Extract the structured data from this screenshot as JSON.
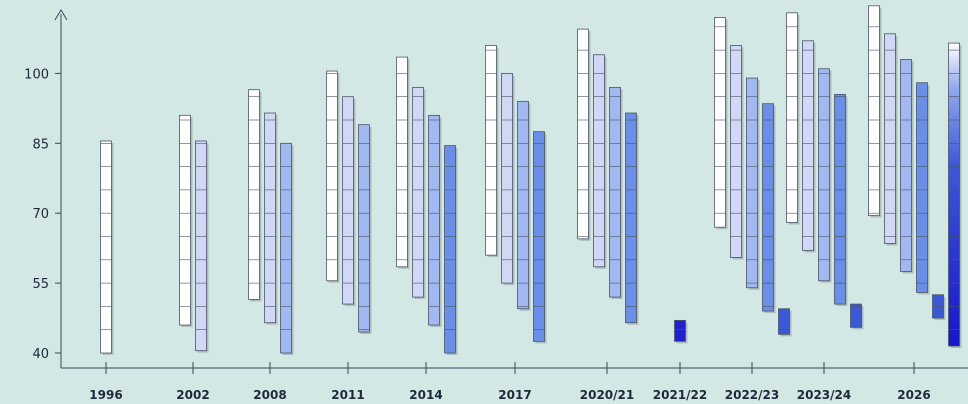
{
  "chart_data": {
    "type": "bar",
    "title": "",
    "xlabel": "",
    "ylabel": "",
    "ylim": [
      40,
      110
    ],
    "yticks": [
      40,
      55,
      70,
      85,
      100
    ],
    "grid": false,
    "legend": "none",
    "categories": [
      "1996",
      "2002",
      "2008",
      "2011",
      "2014",
      "2017",
      "2020/21",
      "2021/22",
      "2022/23",
      "2023/24",
      "2026"
    ],
    "category_ranges": [
      [
        [
          40,
          85.5
        ]
      ],
      [
        [
          46,
          91
        ],
        [
          40.5,
          85.5
        ]
      ],
      [
        [
          51.5,
          96.5
        ],
        [
          46.5,
          91.5
        ],
        [
          40,
          85
        ]
      ],
      [
        [
          55.5,
          100.5
        ],
        [
          50.5,
          95
        ],
        [
          44.5,
          89
        ]
      ],
      [
        [
          58.5,
          103.5
        ],
        [
          52,
          97
        ],
        [
          46,
          91
        ],
        [
          40,
          84.5
        ]
      ],
      [
        [
          61,
          106
        ],
        [
          55,
          100
        ],
        [
          49.5,
          94
        ],
        [
          42.5,
          87.5
        ]
      ],
      [
        [
          64.5,
          109.5
        ],
        [
          58.5,
          104
        ],
        [
          52,
          97
        ],
        [
          46.5,
          91.5
        ]
      ],
      [
        [
          42.5,
          47
        ]
      ],
      [
        [
          67,
          112
        ],
        [
          60.5,
          106
        ],
        [
          54,
          99
        ],
        [
          49,
          93.5
        ],
        [
          44,
          49.5
        ]
      ],
      [
        [
          68,
          113
        ],
        [
          62,
          107
        ],
        [
          55.5,
          101
        ],
        [
          50.5,
          95.5
        ],
        [
          45.5,
          50.5
        ]
      ],
      [
        [
          69.5,
          114.5
        ],
        [
          63.5,
          108.5
        ],
        [
          57.5,
          103
        ],
        [
          53,
          98
        ],
        [
          47.5,
          52.5
        ],
        [
          41.5,
          106.5
        ]
      ]
    ],
    "colors": [
      "#ffffff",
      "#d0d8f6",
      "#a2b8f0",
      "#6b8fe6",
      "#3b58d6",
      "#2020d0"
    ]
  }
}
